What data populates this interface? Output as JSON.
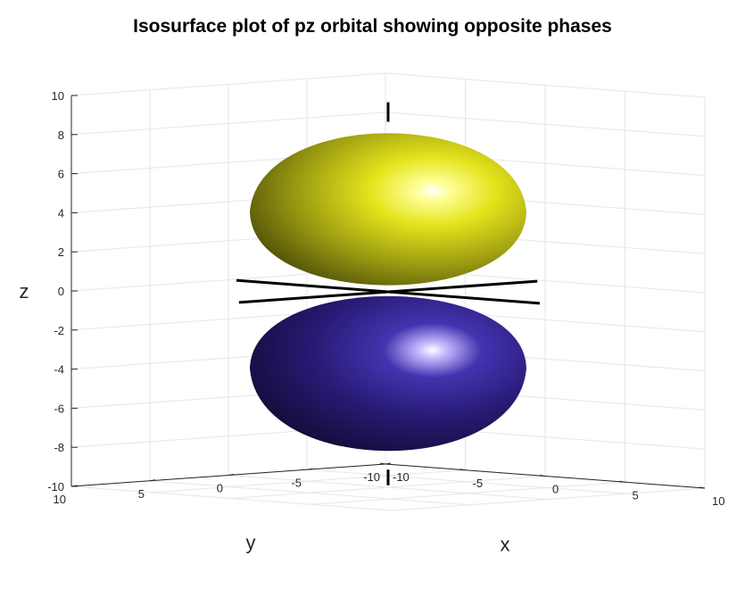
{
  "chart_data": {
    "type": "surface3d",
    "title": "Isosurface plot of pz orbital showing opposite phases",
    "xlabel": "x",
    "ylabel": "y",
    "zlabel": "z",
    "xlim": [
      -10,
      10
    ],
    "ylim": [
      -10,
      10
    ],
    "zlim": [
      -10,
      10
    ],
    "xticks": [
      "-10",
      "-5",
      "0",
      "5",
      "10"
    ],
    "yticks": [
      "-10",
      "-5",
      "0",
      "5",
      "10"
    ],
    "zticks": [
      "-10",
      "-8",
      "-6",
      "-4",
      "-2",
      "0",
      "2",
      "4",
      "6",
      "8",
      "10"
    ],
    "grid": true,
    "series": [
      {
        "phase": "positive",
        "color": "#e8e81a",
        "z_center": 5,
        "z_range": [
          0,
          9
        ]
      },
      {
        "phase": "negative",
        "color": "#2a1a8a",
        "z_center": -5,
        "z_range": [
          -9,
          0
        ]
      }
    ],
    "reference_axes": {
      "color": "#000000",
      "range": [
        -10,
        10
      ]
    }
  }
}
